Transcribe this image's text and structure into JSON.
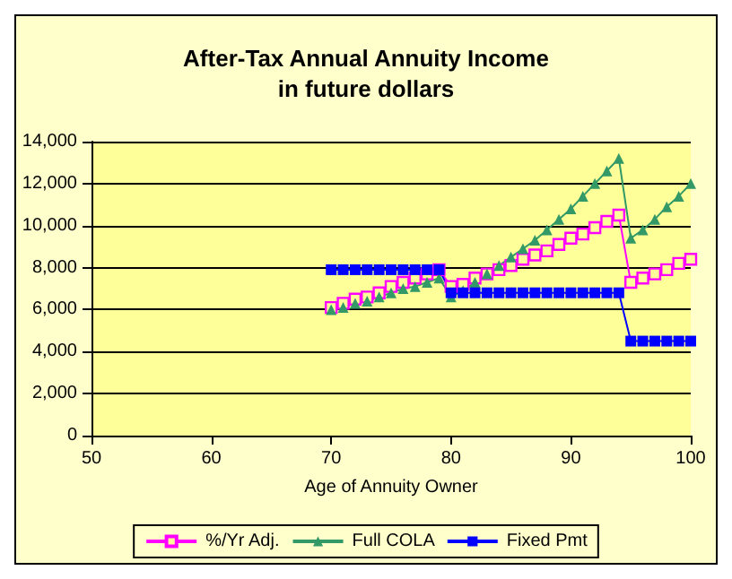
{
  "chart_data": {
    "type": "line",
    "title": "After-Tax Annual Annuity Income\nin future dollars",
    "xlabel": "Age of Annuity Owner",
    "x": [
      70,
      71,
      72,
      73,
      74,
      75,
      76,
      77,
      78,
      79,
      80,
      81,
      82,
      83,
      84,
      85,
      86,
      87,
      88,
      89,
      90,
      91,
      92,
      93,
      94,
      95,
      96,
      97,
      98,
      99,
      100
    ],
    "series": [
      {
        "name": "%/Yr Adj.",
        "color": "#ff00ff",
        "marker": "square",
        "values": [
          6100,
          6300,
          6500,
          6600,
          6800,
          7100,
          7300,
          7500,
          7700,
          7900,
          7100,
          7200,
          7500,
          7700,
          7900,
          8100,
          8400,
          8600,
          8800,
          9100,
          9400,
          9600,
          9900,
          10200,
          10500,
          7300,
          7500,
          7700,
          7900,
          8200,
          8400
        ]
      },
      {
        "name": "Full COLA",
        "color": "#339966",
        "marker": "triangle",
        "values": [
          6000,
          6100,
          6300,
          6400,
          6600,
          6800,
          7000,
          7100,
          7300,
          7500,
          6600,
          6900,
          7300,
          7700,
          8100,
          8500,
          8900,
          9300,
          9800,
          10300,
          10800,
          11400,
          12000,
          12600,
          13200,
          9400,
          9800,
          10300,
          10900,
          11400,
          12000
        ]
      },
      {
        "name": "Fixed Pmt",
        "color": "#0000ff",
        "marker": "square",
        "values": [
          7900,
          7900,
          7900,
          7900,
          7900,
          7900,
          7900,
          7900,
          7900,
          7900,
          6800,
          6800,
          6800,
          6800,
          6800,
          6800,
          6800,
          6800,
          6800,
          6800,
          6800,
          6800,
          6800,
          6800,
          6800,
          4500,
          4500,
          4500,
          4500,
          4500,
          4500
        ]
      }
    ],
    "xlim": [
      50,
      100
    ],
    "xticks": [
      50,
      60,
      70,
      80,
      90,
      100
    ],
    "ylim": [
      0,
      14000
    ],
    "yticks": [
      {
        "value": 0,
        "label": "0"
      },
      {
        "value": 2000,
        "label": "2,000"
      },
      {
        "value": 4000,
        "label": "4,000"
      },
      {
        "value": 6000,
        "label": "6,000"
      },
      {
        "value": 8000,
        "label": "8,000"
      },
      {
        "value": 10000,
        "label": "10,000"
      },
      {
        "value": 12000,
        "label": "12,000"
      },
      {
        "value": 14000,
        "label": "14,000"
      }
    ],
    "grid": "y",
    "legend": "bottom"
  }
}
